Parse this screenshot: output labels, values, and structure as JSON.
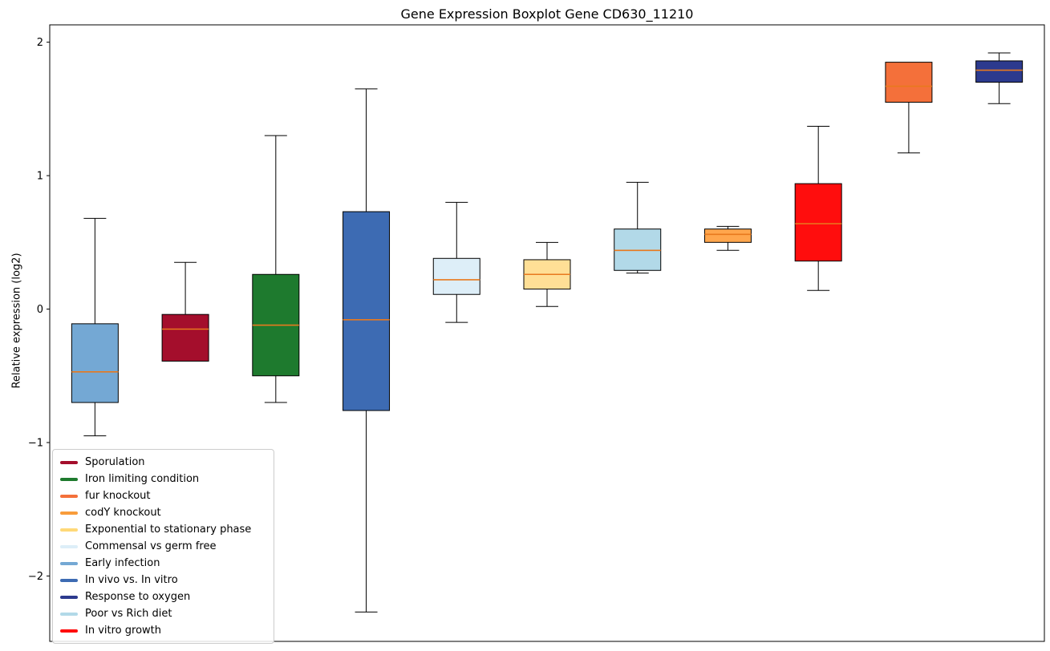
{
  "figure": {
    "title": "Gene Expression Boxplot Gene CD630_11210",
    "ylabel": "Relative expression (log2)"
  },
  "chart_data": {
    "type": "boxplot",
    "title": "Gene Expression Boxplot Gene CD630_11210",
    "xlabel": "",
    "ylabel": "Relative expression (log2)",
    "ylim": [
      -2.49,
      2.13
    ],
    "grid": false,
    "x_tick_labels": [],
    "yticks": [
      {
        "value": 2,
        "label": "2"
      },
      {
        "value": 1,
        "label": "1"
      },
      {
        "value": 0,
        "label": "0"
      },
      {
        "value": -1,
        "label": "−1"
      },
      {
        "value": -2,
        "label": "−2"
      }
    ],
    "median_color": "#e8791e",
    "box_edge_color": "#000000",
    "whisker_color": "#000000",
    "boxes": [
      {
        "label": "Early infection",
        "color": "#74a8d4",
        "whisker_low": -0.95,
        "q1": -0.7,
        "median": -0.47,
        "q3": -0.11,
        "whisker_high": 0.68
      },
      {
        "label": "Sporulation",
        "color": "#a40e2c",
        "whisker_low": -0.39,
        "q1": -0.39,
        "median": -0.15,
        "q3": -0.04,
        "whisker_high": 0.35
      },
      {
        "label": "Iron limiting condition",
        "color": "#1e7a2e",
        "whisker_low": -0.7,
        "q1": -0.5,
        "median": -0.12,
        "q3": 0.26,
        "whisker_high": 1.3
      },
      {
        "label": "In vivo vs. In vitro",
        "color": "#3d6bb3",
        "whisker_low": -2.27,
        "q1": -0.76,
        "median": -0.08,
        "q3": 0.73,
        "whisker_high": 1.65
      },
      {
        "label": "Commensal vs germ free",
        "color": "#ddeef8",
        "whisker_low": -0.1,
        "q1": 0.11,
        "median": 0.22,
        "q3": 0.38,
        "whisker_high": 0.8
      },
      {
        "label": "Exponential to stationary phase",
        "color": "#ffdf96",
        "whisker_low": 0.02,
        "q1": 0.15,
        "median": 0.26,
        "q3": 0.37,
        "whisker_high": 0.5
      },
      {
        "label": "Poor vs Rich diet",
        "color": "#b2d9e8",
        "whisker_low": 0.27,
        "q1": 0.29,
        "median": 0.44,
        "q3": 0.6,
        "whisker_high": 0.95
      },
      {
        "label": "codY knockout",
        "color": "#ffa64d",
        "whisker_low": 0.44,
        "q1": 0.5,
        "median": 0.56,
        "q3": 0.6,
        "whisker_high": 0.62
      },
      {
        "label": "In vitro growth",
        "color": "#ff0d0d",
        "whisker_low": 0.14,
        "q1": 0.36,
        "median": 0.64,
        "q3": 0.94,
        "whisker_high": 1.37
      },
      {
        "label": "fur knockout",
        "color": "#f4703a",
        "whisker_low": 1.17,
        "q1": 1.55,
        "median": 1.67,
        "q3": 1.85,
        "whisker_high": 1.85
      },
      {
        "label": "Response to oxygen",
        "color": "#2c3a8e",
        "whisker_low": 1.54,
        "q1": 1.7,
        "median": 1.79,
        "q3": 1.86,
        "whisker_high": 1.92
      }
    ],
    "legend": {
      "position": "lower left",
      "entries": [
        {
          "label": "Sporulation",
          "color": "#a40e2c"
        },
        {
          "label": "Iron limiting condition",
          "color": "#1e7a2e"
        },
        {
          "label": "fur knockout",
          "color": "#f4703a"
        },
        {
          "label": "codY knockout",
          "color": "#f89c3a"
        },
        {
          "label": "Exponential to stationary phase",
          "color": "#ffd978"
        },
        {
          "label": "Commensal vs germ free",
          "color": "#ddeef8"
        },
        {
          "label": "Early infection",
          "color": "#74a8d4"
        },
        {
          "label": "In vivo vs. In vitro",
          "color": "#3d6bb3"
        },
        {
          "label": "Response to oxygen",
          "color": "#2c3a8e"
        },
        {
          "label": "Poor vs Rich diet",
          "color": "#b2d9e8"
        },
        {
          "label": "In vitro growth",
          "color": "#ff0d0d"
        }
      ]
    }
  }
}
